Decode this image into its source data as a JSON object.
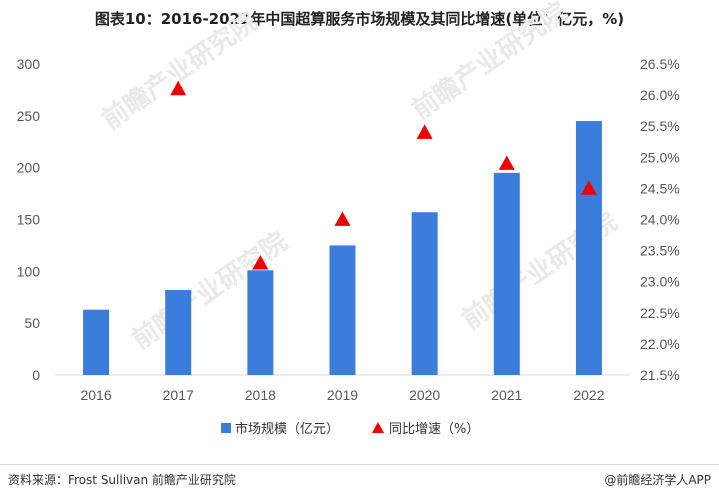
{
  "title": "图表10：2016-2022年中国超算服务市场规模及其同比增速(单位：亿元，%)",
  "footer": {
    "source": "资料来源：Frost Sullivan 前瞻产业研究院",
    "brand": "@前瞻经济学人APP"
  },
  "watermark": "前瞻产业研究院",
  "colors": {
    "bar": "#3a7ddb",
    "marker": "#ee0000",
    "axis": "#d9d9d9",
    "text": "#595959"
  },
  "chart_data": {
    "type": "bar",
    "categories": [
      "2016",
      "2017",
      "2018",
      "2019",
      "2020",
      "2021",
      "2022"
    ],
    "series": [
      {
        "name": "市场规模（亿元）",
        "type": "bar",
        "axis": "left",
        "values": [
          63,
          82,
          101,
          125,
          157,
          195,
          245
        ]
      },
      {
        "name": "同比增速（%）",
        "type": "scatter",
        "marker": "triangle",
        "axis": "right",
        "values": [
          null,
          26.1,
          23.3,
          24.0,
          25.4,
          24.9,
          24.5
        ]
      }
    ],
    "y_left": {
      "ylim": [
        0,
        300
      ],
      "ticks": [
        "0",
        "50",
        "100",
        "150",
        "200",
        "250",
        "300"
      ]
    },
    "y_right": {
      "ylim": [
        21.5,
        26.5
      ],
      "ticks": [
        "21.5%",
        "22.0%",
        "22.5%",
        "23.0%",
        "23.5%",
        "24.0%",
        "24.5%",
        "25.0%",
        "25.5%",
        "26.0%",
        "26.5%"
      ]
    },
    "legend_position": "bottom-center",
    "grid": false
  }
}
